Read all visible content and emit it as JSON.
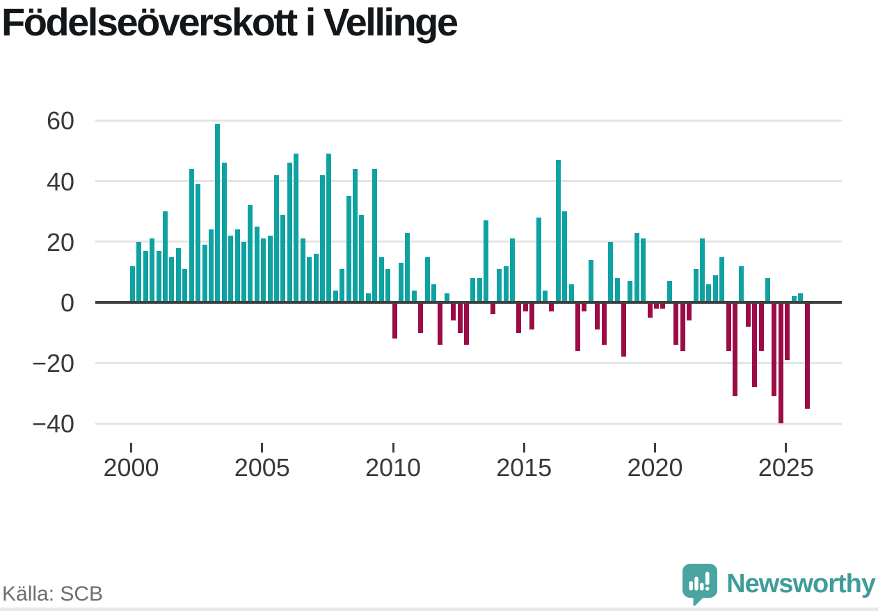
{
  "page": {
    "title": "Födelseöverskott i Vellinge",
    "source": "Källa: SCB",
    "brand": "Newsworthy"
  },
  "colors": {
    "positive_bar": "#0FA2A2",
    "negative_bar": "#9C0D47",
    "grid": "#E4E4E4",
    "axis_line": "#3F3F3F",
    "axis_text": "#37393B",
    "title_text": "#14171A",
    "source_text": "#6C6C74",
    "brand_text": "#3F9D99",
    "brand_icon": "#4AA5A0"
  },
  "chart_data": {
    "type": "bar",
    "title": "Födelseöverskott i Vellinge",
    "xlabel": "",
    "ylabel": "",
    "legend": false,
    "grid": "horizontal",
    "start_year": 2000,
    "frequency": "quarterly",
    "ylim": [
      -45,
      65
    ],
    "y_ticks": [
      60,
      40,
      20,
      0,
      -20,
      -40
    ],
    "y_tick_labels": [
      "60",
      "40",
      "20",
      "0",
      "−20",
      "−40"
    ],
    "x_tick_labels": [
      "2000",
      "2005",
      "2010",
      "2015",
      "2020",
      "2025"
    ],
    "series_name": "Födelseöverskott",
    "values_by_year": [
      {
        "year": 2000,
        "q": [
          12,
          20,
          17,
          21
        ]
      },
      {
        "year": 2001,
        "q": [
          17,
          30,
          15,
          18
        ]
      },
      {
        "year": 2002,
        "q": [
          11,
          44,
          39,
          19
        ]
      },
      {
        "year": 2003,
        "q": [
          24,
          59,
          46,
          22
        ]
      },
      {
        "year": 2004,
        "q": [
          24,
          20,
          32,
          25
        ]
      },
      {
        "year": 2005,
        "q": [
          21,
          22,
          42,
          29
        ]
      },
      {
        "year": 2006,
        "q": [
          46,
          49,
          21,
          15
        ]
      },
      {
        "year": 2007,
        "q": [
          16,
          42,
          49,
          4
        ]
      },
      {
        "year": 2008,
        "q": [
          11,
          35,
          44,
          29
        ]
      },
      {
        "year": 2009,
        "q": [
          3,
          44,
          15,
          11
        ]
      },
      {
        "year": 2010,
        "q": [
          -12,
          13,
          23,
          4
        ]
      },
      {
        "year": 2011,
        "q": [
          -10,
          15,
          6,
          -14
        ]
      },
      {
        "year": 2012,
        "q": [
          3,
          -6,
          -10,
          -14
        ]
      },
      {
        "year": 2013,
        "q": [
          8,
          8,
          27,
          -4
        ]
      },
      {
        "year": 2014,
        "q": [
          11,
          12,
          21,
          -10
        ]
      },
      {
        "year": 2015,
        "q": [
          -3,
          -9,
          28,
          4
        ]
      },
      {
        "year": 2016,
        "q": [
          -3,
          47,
          30,
          6
        ]
      },
      {
        "year": 2017,
        "q": [
          -16,
          -3,
          14,
          -9
        ]
      },
      {
        "year": 2018,
        "q": [
          -14,
          20,
          8,
          -18
        ]
      },
      {
        "year": 2019,
        "q": [
          7,
          23,
          21,
          -5
        ]
      },
      {
        "year": 2020,
        "q": [
          -2,
          -2,
          7,
          -14
        ]
      },
      {
        "year": 2021,
        "q": [
          -16,
          -6,
          11,
          21
        ]
      },
      {
        "year": 2022,
        "q": [
          6,
          9,
          15,
          -16
        ]
      },
      {
        "year": 2023,
        "q": [
          -31,
          12,
          -8,
          -28
        ]
      },
      {
        "year": 2024,
        "q": [
          -16,
          8,
          -31,
          -40
        ]
      },
      {
        "year": 2025,
        "q": [
          -19,
          2,
          3,
          -35
        ]
      }
    ]
  }
}
